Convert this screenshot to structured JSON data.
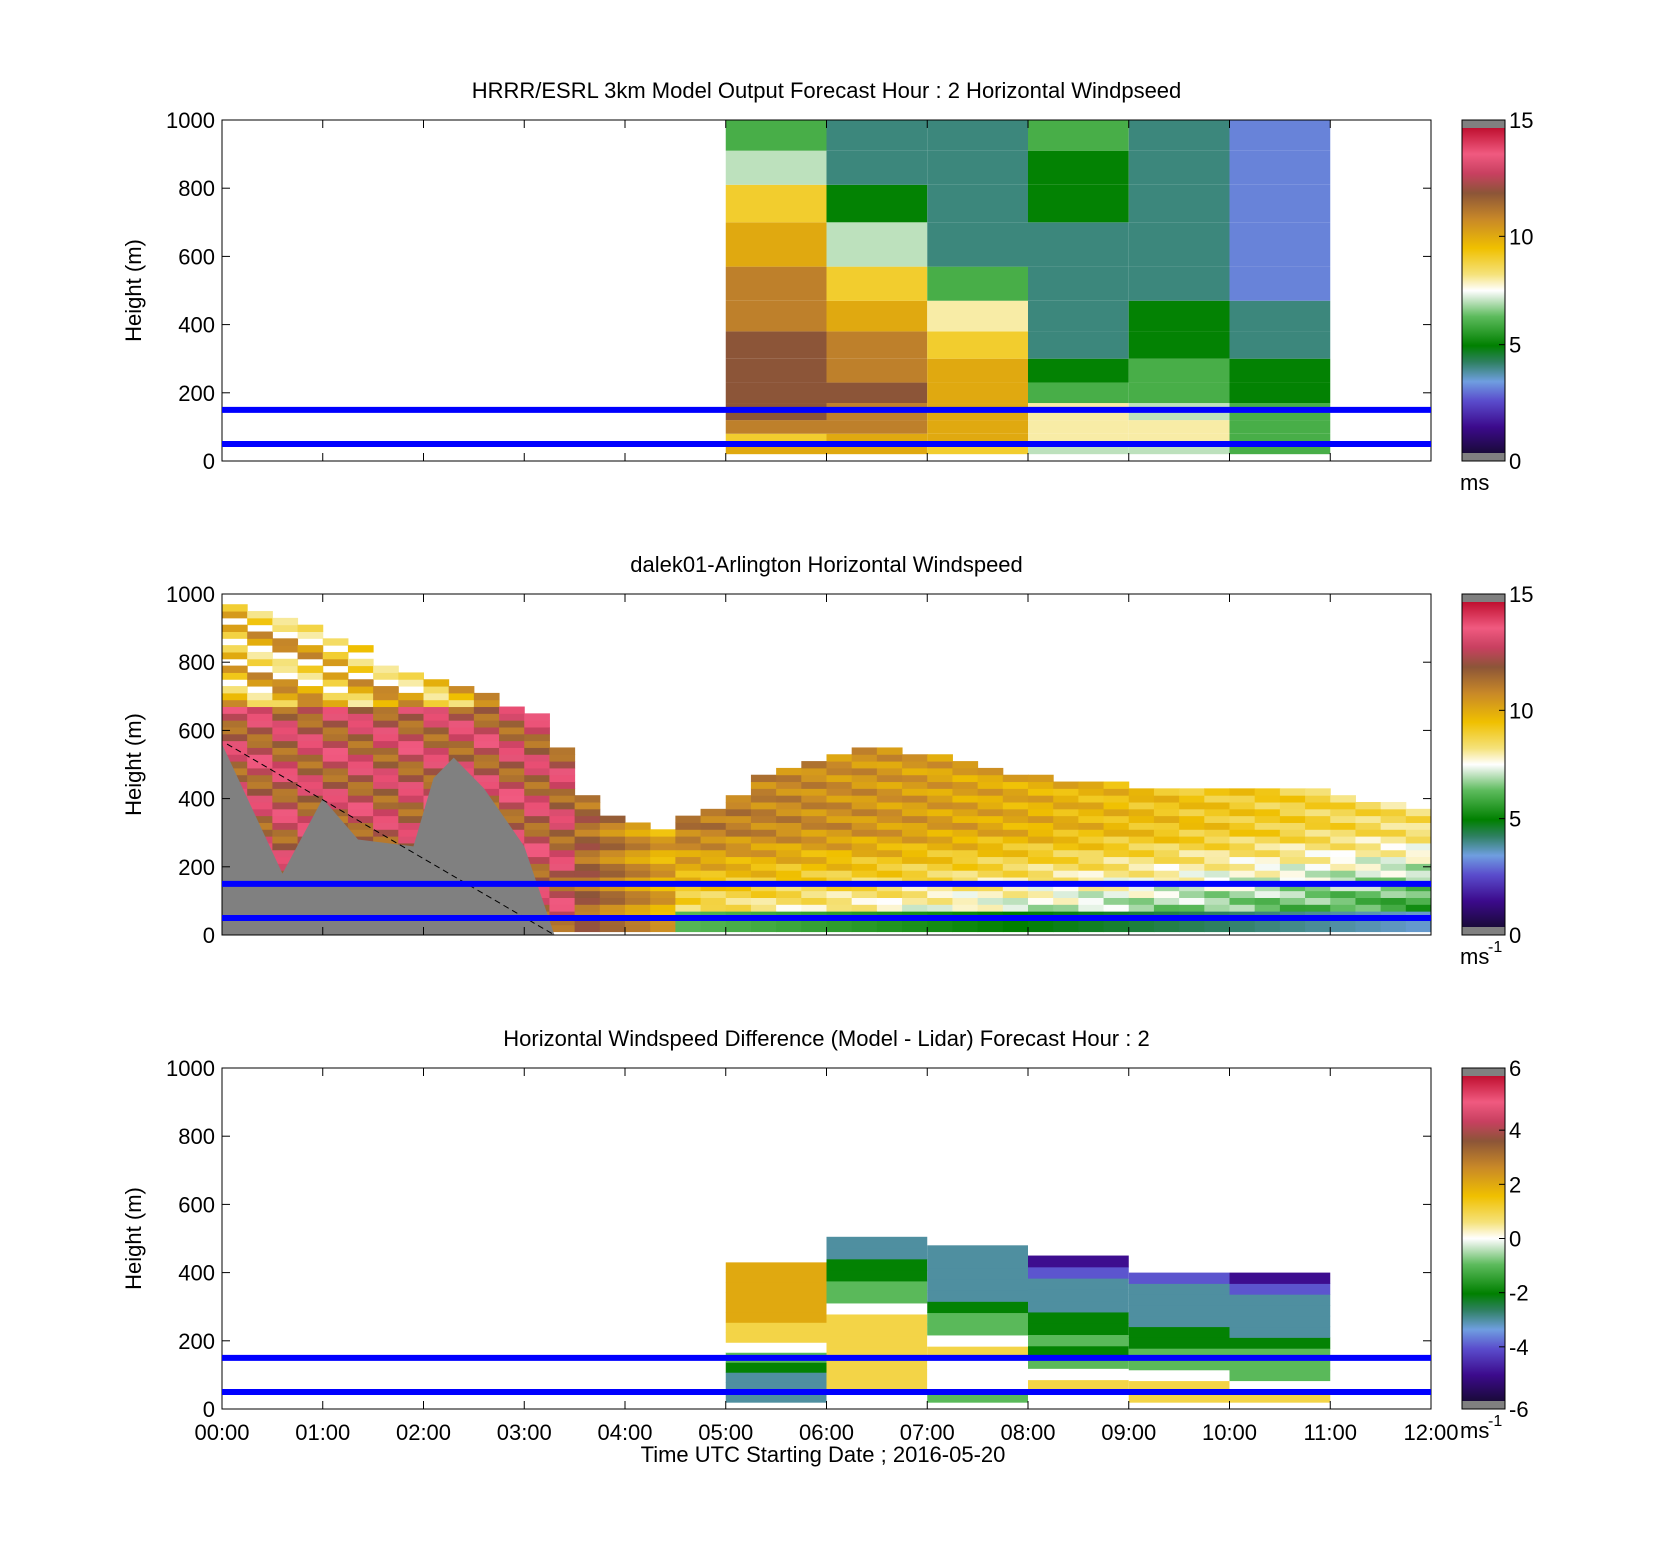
{
  "figure": {
    "xaxis_title": "Time UTC  Starting Date ; 2016-05-20",
    "y_label": "Height (m)",
    "x_ticks": [
      "00:00",
      "01:00",
      "02:00",
      "03:00",
      "04:00",
      "05:00",
      "06:00",
      "07:00",
      "08:00",
      "09:00",
      "10:00",
      "11:00",
      "12:00"
    ],
    "y_ticks": [
      "0",
      "200",
      "400",
      "600",
      "800",
      "1000"
    ]
  },
  "chart_data": [
    {
      "type": "heatmap",
      "title": "HRRR/ESRL 3km Model Output   Forecast Hour : 2 Horizontal Windpseed",
      "xlabel": "",
      "ylabel": "Height (m)",
      "x_range_hours": [
        0,
        12
      ],
      "ylim": [
        0,
        1000
      ],
      "colorbar": {
        "range": [
          0,
          15
        ],
        "ticks": [
          "0",
          "5",
          "10",
          "15"
        ],
        "unit": "ms",
        "unit_sup": ""
      },
      "reference_lines_m": [
        50,
        150
      ],
      "model_columns": [
        {
          "hour": 5,
          "speeds": [
            10,
            9,
            11,
            12,
            12,
            12,
            12,
            11,
            11,
            10,
            9,
            7,
            6
          ]
        },
        {
          "hour": 6,
          "speeds": [
            10,
            10,
            11,
            11,
            12,
            11,
            11,
            10,
            9,
            7,
            5,
            4,
            4
          ]
        },
        {
          "hour": 7,
          "speeds": [
            9,
            10,
            10,
            10,
            10,
            10,
            9,
            8,
            6,
            4,
            4,
            4,
            4
          ]
        },
        {
          "hour": 8,
          "speeds": [
            7,
            8,
            8,
            8,
            6,
            5,
            4,
            4,
            4,
            4,
            5,
            5,
            6
          ]
        },
        {
          "hour": 9,
          "speeds": [
            7,
            8,
            8,
            7,
            6,
            6,
            5,
            5,
            4,
            4,
            4,
            4,
            4
          ]
        },
        {
          "hour": 10,
          "speeds": [
            6,
            6,
            6,
            6,
            5,
            5,
            4,
            4,
            3,
            3,
            3,
            3,
            3
          ]
        }
      ]
    },
    {
      "type": "heatmap",
      "title": "dalek01-Arlington  Horizontal Windspeed",
      "xlabel": "",
      "ylabel": "Height (m)",
      "x_range_hours": [
        0,
        12
      ],
      "ylim": [
        0,
        1000
      ],
      "colorbar": {
        "range": [
          0,
          15
        ],
        "ticks": [
          "0",
          "5",
          "10",
          "15"
        ],
        "unit": "ms",
        "unit_sup": "-1"
      },
      "reference_lines_m": [
        50,
        150
      ],
      "lidar_profile_top_m": [
        [
          0.0,
          1000
        ],
        [
          0.5,
          960
        ],
        [
          1.0,
          880
        ],
        [
          1.5,
          820
        ],
        [
          2.0,
          780
        ],
        [
          2.5,
          720
        ],
        [
          3.0,
          650
        ],
        [
          3.25,
          640
        ],
        [
          3.5,
          430
        ],
        [
          4.0,
          320
        ],
        [
          4.3,
          300
        ],
        [
          4.6,
          330
        ],
        [
          5.0,
          380
        ],
        [
          5.5,
          480
        ],
        [
          6.0,
          520
        ],
        [
          6.5,
          540
        ],
        [
          7.0,
          520
        ],
        [
          7.5,
          490
        ],
        [
          8.0,
          460
        ],
        [
          8.5,
          440
        ],
        [
          9.0,
          430
        ],
        [
          9.5,
          430
        ],
        [
          10.0,
          420
        ],
        [
          10.5,
          420
        ],
        [
          11.0,
          410
        ],
        [
          11.5,
          380
        ],
        [
          11.9,
          360
        ]
      ],
      "gray_blocked_region": [
        [
          0.0,
          560
        ],
        [
          0.6,
          180
        ],
        [
          1.0,
          400
        ],
        [
          1.35,
          280
        ],
        [
          1.9,
          260
        ],
        [
          2.1,
          460
        ],
        [
          2.3,
          520
        ],
        [
          2.6,
          430
        ],
        [
          3.0,
          260
        ],
        [
          3.3,
          0
        ]
      ]
    },
    {
      "type": "heatmap",
      "title": "Horizontal Windspeed Difference (Model - Lidar) Forecast Hour : 2",
      "xlabel": "Time UTC  Starting Date ; 2016-05-20",
      "ylabel": "Height (m)",
      "x_range_hours": [
        0,
        12
      ],
      "ylim": [
        0,
        1000
      ],
      "colorbar": {
        "range": [
          -6,
          6
        ],
        "ticks": [
          "-6",
          "-4",
          "-2",
          "0",
          "2",
          "4",
          "6"
        ],
        "unit": "ms",
        "unit_sup": "-1"
      },
      "reference_lines_m": [
        50,
        150
      ],
      "difference_columns": [
        {
          "hour": 5,
          "top_m": 430,
          "values": [
            -3,
            -3,
            -3,
            -2,
            -1,
            0,
            1,
            1,
            2,
            2,
            2,
            2,
            2,
            2
          ]
        },
        {
          "hour": 6,
          "top_m": 505,
          "values": [
            0,
            1,
            1,
            1,
            1,
            1,
            1,
            1,
            0,
            -1,
            -1,
            -2,
            -2,
            -3,
            -3
          ]
        },
        {
          "hour": 7,
          "top_m": 480,
          "values": [
            -1,
            0,
            0,
            0,
            1,
            0,
            -1,
            -1,
            -2,
            -3,
            -3,
            -3,
            -3,
            -3
          ]
        },
        {
          "hour": 8,
          "top_m": 450,
          "values": [
            0,
            1,
            0,
            -1,
            -2,
            -1,
            -2,
            -2,
            -3,
            -3,
            -3,
            -4,
            -5
          ]
        },
        {
          "hour": 9,
          "top_m": 400,
          "values": [
            1,
            1,
            0,
            -1,
            -1,
            -2,
            -2,
            -3,
            -3,
            -3,
            -3,
            -4
          ]
        },
        {
          "hour": 10,
          "top_m": 400,
          "values": [
            1,
            0,
            -1,
            -1,
            -1,
            -2,
            -3,
            -3,
            -3,
            -3,
            -4,
            -5
          ]
        }
      ]
    }
  ]
}
